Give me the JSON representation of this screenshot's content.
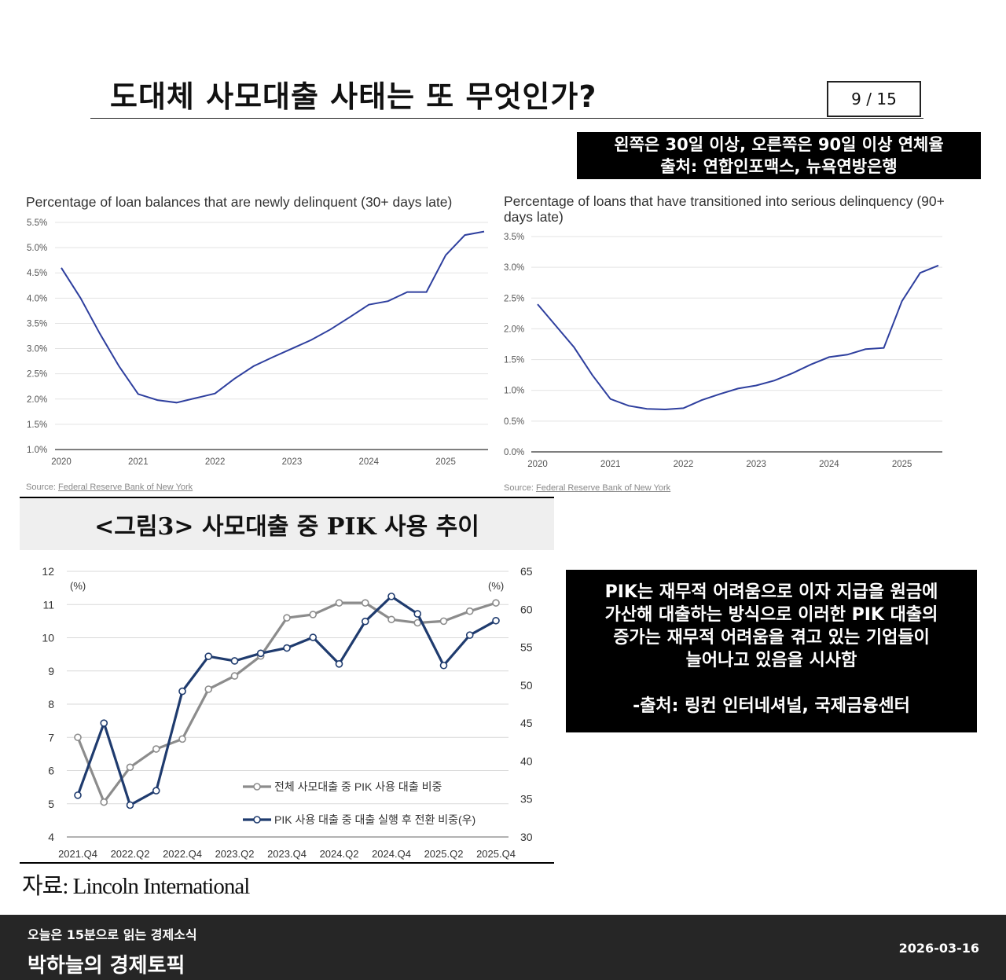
{
  "header": {
    "title": "도대체 사모대출 사태는 또 무엇인가?",
    "page_indicator": "9 / 15"
  },
  "note": {
    "line1": "왼쪽은 30일 이상, 오른쪽은 90일 이상 연체율",
    "line2": "출처: 연합인포맥스, 뉴욕연방은행"
  },
  "colors": {
    "nyfed_line": "#2e3f9e",
    "grey_series": "#8c8c8c",
    "navy_series": "#1f3b6e"
  },
  "chart_data": [
    {
      "type": "line",
      "title": "Percentage of loan balances that are newly delinquent (30+ days late)",
      "source_label": "Source:",
      "source_link": "Federal Reserve Bank of New York",
      "ylim": [
        10,
        55
      ],
      "xlim": [
        2020,
        2025.5
      ],
      "y_ticks": [
        10,
        15,
        20,
        25,
        30,
        35,
        40,
        45,
        50,
        55
      ],
      "y_tick_labels": [
        "1.0%",
        "1.5%",
        "2.0%",
        "2.5%",
        "3.0%",
        "3.5%",
        "4.0%",
        "4.5%",
        "5.0%",
        "5.5%"
      ],
      "x_ticks": [
        2020,
        2021,
        2022,
        2023,
        2024,
        2025
      ],
      "x_tick_labels": [
        "2020",
        "2021",
        "2022",
        "2023",
        "2024",
        "2025"
      ],
      "x": [
        2020,
        2020.25,
        2020.5,
        2020.75,
        2021,
        2021.25,
        2021.5,
        2021.75,
        2022,
        2022.25,
        2022.5,
        2022.75,
        2023,
        2023.25,
        2023.5,
        2023.75,
        2024,
        2024.25,
        2024.5,
        2024.75,
        2025,
        2025.25,
        2025.5
      ],
      "y": [
        46,
        40,
        33,
        26.5,
        21,
        19.8,
        19.3,
        20.2,
        21.1,
        24,
        26.5,
        28.3,
        30,
        31.7,
        33.8,
        36.2,
        38.7,
        39.4,
        41.2,
        41.2,
        48.5,
        52.5,
        53.2
      ]
    },
    {
      "type": "line",
      "title": "Percentage of loans that have transitioned into serious delinquency (90+ days late)",
      "source_label": "Source:",
      "source_link": "Federal Reserve Bank of New York",
      "ylim": [
        0,
        35
      ],
      "xlim": [
        2020,
        2025.5
      ],
      "y_ticks": [
        0,
        5,
        10,
        15,
        20,
        25,
        30,
        35
      ],
      "y_tick_labels": [
        "0.0%",
        "0.5%",
        "1.0%",
        "1.5%",
        "2.0%",
        "2.5%",
        "3.0%",
        "3.5%"
      ],
      "x_ticks": [
        2020,
        2021,
        2022,
        2023,
        2024,
        2025
      ],
      "x_tick_labels": [
        "2020",
        "2021",
        "2022",
        "2023",
        "2024",
        "2025"
      ],
      "x": [
        2020,
        2020.25,
        2020.5,
        2020.75,
        2021,
        2021.25,
        2021.5,
        2021.75,
        2022,
        2022.25,
        2022.5,
        2022.75,
        2023,
        2023.25,
        2023.5,
        2023.75,
        2024,
        2024.25,
        2024.5,
        2024.75,
        2025,
        2025.25,
        2025.5
      ],
      "y": [
        24,
        20.5,
        17,
        12.5,
        8.6,
        7.5,
        7,
        6.9,
        7.1,
        8.4,
        9.4,
        10.3,
        10.8,
        11.6,
        12.8,
        14.2,
        15.4,
        15.8,
        16.7,
        16.9,
        24.5,
        29.1,
        30.3
      ]
    },
    {
      "type": "line",
      "title": "<그림3> 사모대출 중 PIK 사용 추이",
      "categories": [
        "2021.Q4",
        "2022.Q1",
        "2022.Q2",
        "2022.Q3",
        "2022.Q4",
        "2023.Q1",
        "2023.Q2",
        "2023.Q3",
        "2023.Q4",
        "2024.Q1",
        "2024.Q2",
        "2024.Q3",
        "2024.Q4",
        "2025.Q1",
        "2025.Q2",
        "2025.Q3",
        "2025.Q4"
      ],
      "x_tick_labels": [
        "2021.Q4",
        "2022.Q2",
        "2022.Q4",
        "2023.Q2",
        "2023.Q4",
        "2024.Q2",
        "2024.Q4",
        "2025.Q2",
        "2025.Q4"
      ],
      "left_axis": {
        "unit": "(%)",
        "ylim": [
          4,
          12
        ],
        "ticks": [
          "4",
          "5",
          "6",
          "7",
          "8",
          "9",
          "10",
          "11",
          "12"
        ]
      },
      "right_axis": {
        "unit": "(%)",
        "ylim": [
          30,
          65
        ],
        "ticks": [
          "30",
          "35",
          "40",
          "45",
          "50",
          "55",
          "60",
          "65"
        ]
      },
      "series": [
        {
          "name": "전체 사모대출 중 PIK 사용 대출 비중",
          "axis": "left",
          "values": [
            7.0,
            5.05,
            6.1,
            6.65,
            6.95,
            8.45,
            8.85,
            9.45,
            10.6,
            10.7,
            11.05,
            11.05,
            10.55,
            10.45,
            10.5,
            10.8,
            11.05
          ]
        },
        {
          "name": "PIK 사용 대출 중 대출 실행 후 전환 비중(우)",
          "axis": "right",
          "values": [
            35.5,
            45,
            34.2,
            36.1,
            49.2,
            53.8,
            53.2,
            54.2,
            54.9,
            56.3,
            52.8,
            58.4,
            61.7,
            59.4,
            52.6,
            56.6,
            58.5
          ]
        }
      ],
      "source": "자료: Lincoln International"
    }
  ],
  "pik_note": {
    "lines": [
      "PIK는 재무적 어려움으로 이자 지급을 원금에",
      "가산해 대출하는 방식으로 이러한 PIK 대출의",
      "증가는 재무적 어려움을 겪고 있는 기업들이",
      "늘어나고 있음을 시사함"
    ],
    "source": "-출처: 링컨 인터네셔널, 국제금융센터"
  },
  "footer": {
    "subtitle": "오늘은 15분으로 읽는 경제소식",
    "brand": "박하늘의 경제토픽",
    "date": "2026-03-16"
  }
}
